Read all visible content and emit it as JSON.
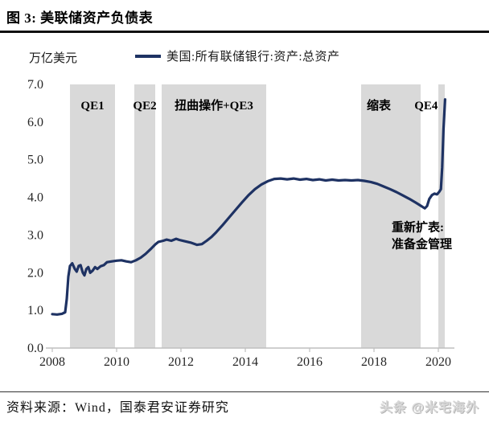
{
  "header": {
    "title": "图 3:  美联储资产负债表"
  },
  "footer": {
    "source": "资料来源：Wind，国泰君安证券研究",
    "watermark": "头条 @米宅海外"
  },
  "chart_data": {
    "type": "line",
    "title": "美联储资产负债表",
    "unit_label": "万亿美元",
    "xlabel": "",
    "ylabel": "万亿美元",
    "xlim": [
      2007.8,
      2020.5
    ],
    "ylim": [
      0,
      7
    ],
    "x_ticks": [
      2008,
      2010,
      2012,
      2014,
      2016,
      2018,
      2020
    ],
    "y_ticks": [
      0,
      1,
      2,
      3,
      4,
      5,
      6,
      7
    ],
    "grid": false,
    "legend_position": "top",
    "band_color": "#d9d9d9",
    "axis_color": "#bfbfbf",
    "tick_text_color": "#262626",
    "bands": [
      {
        "label": "QE1",
        "from": 2008.55,
        "to": 2009.95
      },
      {
        "label": "QE2",
        "from": 2010.55,
        "to": 2011.2
      },
      {
        "label": "扭曲操作+QE3",
        "from": 2011.4,
        "to": 2014.65
      },
      {
        "label": "缩表",
        "from": 2017.6,
        "to": 2019.45,
        "label_at": 2018.15
      },
      {
        "label": "QE4",
        "from": 2020.0,
        "to": 2020.2,
        "label_at": 2019.62
      }
    ],
    "annotation": {
      "lines": [
        "重新扩表:",
        "准备金管理"
      ],
      "anchor_year": 2018.55,
      "anchor_value": 3.1
    },
    "series": [
      {
        "name": "美国:所有联储银行:资产:总资产",
        "color": "#1e3263",
        "points": [
          [
            2008.0,
            0.9
          ],
          [
            2008.15,
            0.89
          ],
          [
            2008.3,
            0.91
          ],
          [
            2008.4,
            0.95
          ],
          [
            2008.45,
            1.3
          ],
          [
            2008.5,
            1.9
          ],
          [
            2008.55,
            2.18
          ],
          [
            2008.62,
            2.25
          ],
          [
            2008.7,
            2.1
          ],
          [
            2008.76,
            2.03
          ],
          [
            2008.82,
            2.18
          ],
          [
            2008.88,
            2.2
          ],
          [
            2008.95,
            2.0
          ],
          [
            2009.0,
            1.93
          ],
          [
            2009.06,
            2.1
          ],
          [
            2009.12,
            2.15
          ],
          [
            2009.18,
            2.0
          ],
          [
            2009.25,
            2.05
          ],
          [
            2009.33,
            2.15
          ],
          [
            2009.4,
            2.1
          ],
          [
            2009.5,
            2.17
          ],
          [
            2009.6,
            2.2
          ],
          [
            2009.7,
            2.28
          ],
          [
            2009.85,
            2.3
          ],
          [
            2010.0,
            2.32
          ],
          [
            2010.15,
            2.33
          ],
          [
            2010.3,
            2.3
          ],
          [
            2010.45,
            2.28
          ],
          [
            2010.6,
            2.33
          ],
          [
            2010.75,
            2.4
          ],
          [
            2010.9,
            2.5
          ],
          [
            2011.05,
            2.62
          ],
          [
            2011.2,
            2.75
          ],
          [
            2011.3,
            2.82
          ],
          [
            2011.45,
            2.85
          ],
          [
            2011.55,
            2.88
          ],
          [
            2011.7,
            2.85
          ],
          [
            2011.85,
            2.9
          ],
          [
            2011.95,
            2.87
          ],
          [
            2012.1,
            2.84
          ],
          [
            2012.3,
            2.8
          ],
          [
            2012.5,
            2.74
          ],
          [
            2012.65,
            2.76
          ],
          [
            2012.8,
            2.85
          ],
          [
            2012.95,
            2.95
          ],
          [
            2013.1,
            3.08
          ],
          [
            2013.3,
            3.27
          ],
          [
            2013.5,
            3.47
          ],
          [
            2013.7,
            3.67
          ],
          [
            2013.9,
            3.87
          ],
          [
            2014.1,
            4.06
          ],
          [
            2014.3,
            4.22
          ],
          [
            2014.5,
            4.34
          ],
          [
            2014.7,
            4.43
          ],
          [
            2014.9,
            4.49
          ],
          [
            2015.1,
            4.5
          ],
          [
            2015.3,
            4.48
          ],
          [
            2015.5,
            4.5
          ],
          [
            2015.7,
            4.47
          ],
          [
            2015.9,
            4.49
          ],
          [
            2016.1,
            4.46
          ],
          [
            2016.3,
            4.48
          ],
          [
            2016.5,
            4.45
          ],
          [
            2016.7,
            4.47
          ],
          [
            2016.9,
            4.45
          ],
          [
            2017.1,
            4.46
          ],
          [
            2017.3,
            4.45
          ],
          [
            2017.5,
            4.46
          ],
          [
            2017.7,
            4.44
          ],
          [
            2017.9,
            4.41
          ],
          [
            2018.1,
            4.36
          ],
          [
            2018.3,
            4.29
          ],
          [
            2018.5,
            4.22
          ],
          [
            2018.7,
            4.14
          ],
          [
            2018.9,
            4.05
          ],
          [
            2019.1,
            3.96
          ],
          [
            2019.3,
            3.86
          ],
          [
            2019.45,
            3.78
          ],
          [
            2019.58,
            3.71
          ],
          [
            2019.65,
            3.77
          ],
          [
            2019.72,
            3.96
          ],
          [
            2019.8,
            4.06
          ],
          [
            2019.88,
            4.1
          ],
          [
            2019.96,
            4.08
          ],
          [
            2020.03,
            4.15
          ],
          [
            2020.08,
            4.22
          ],
          [
            2020.12,
            4.8
          ],
          [
            2020.16,
            5.8
          ],
          [
            2020.21,
            6.6
          ]
        ]
      }
    ]
  }
}
